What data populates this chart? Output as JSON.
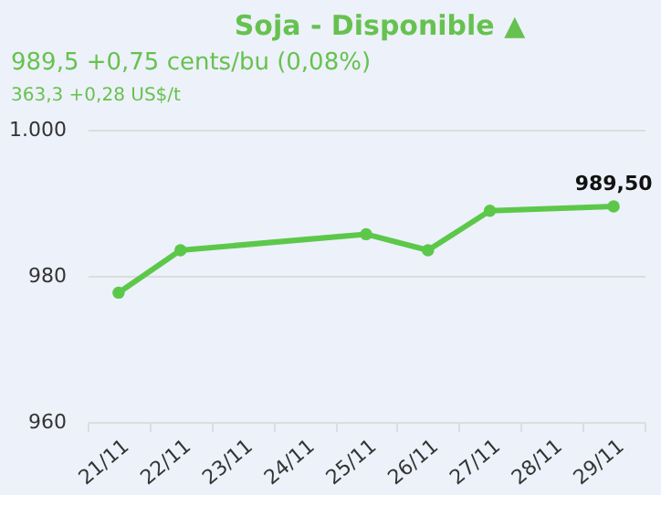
{
  "chart_data": {
    "type": "line",
    "title": "Soja - Disponible ▲",
    "subtitle": "989,5 +0,75 cents/bu (0,08%)",
    "annotations": [
      "363,3 +0,28 US$/t"
    ],
    "categories": [
      "21/11",
      "22/11",
      "23/11",
      "24/11",
      "25/11",
      "26/11",
      "27/11",
      "28/11",
      "29/11"
    ],
    "series": [
      {
        "color": "#5cc84a",
        "values": [
          977.7,
          983.5,
          null,
          null,
          985.7,
          983.5,
          988.9,
          null,
          989.5
        ],
        "value_labels": [
          null,
          null,
          null,
          null,
          null,
          null,
          null,
          null,
          "989,50"
        ]
      }
    ],
    "ylim": [
      960,
      1000
    ],
    "yticks": [
      960,
      980,
      {
        "value": 1000,
        "label": "1.000"
      }
    ],
    "grid": "y",
    "marker": "circle",
    "line_style": "solid"
  }
}
